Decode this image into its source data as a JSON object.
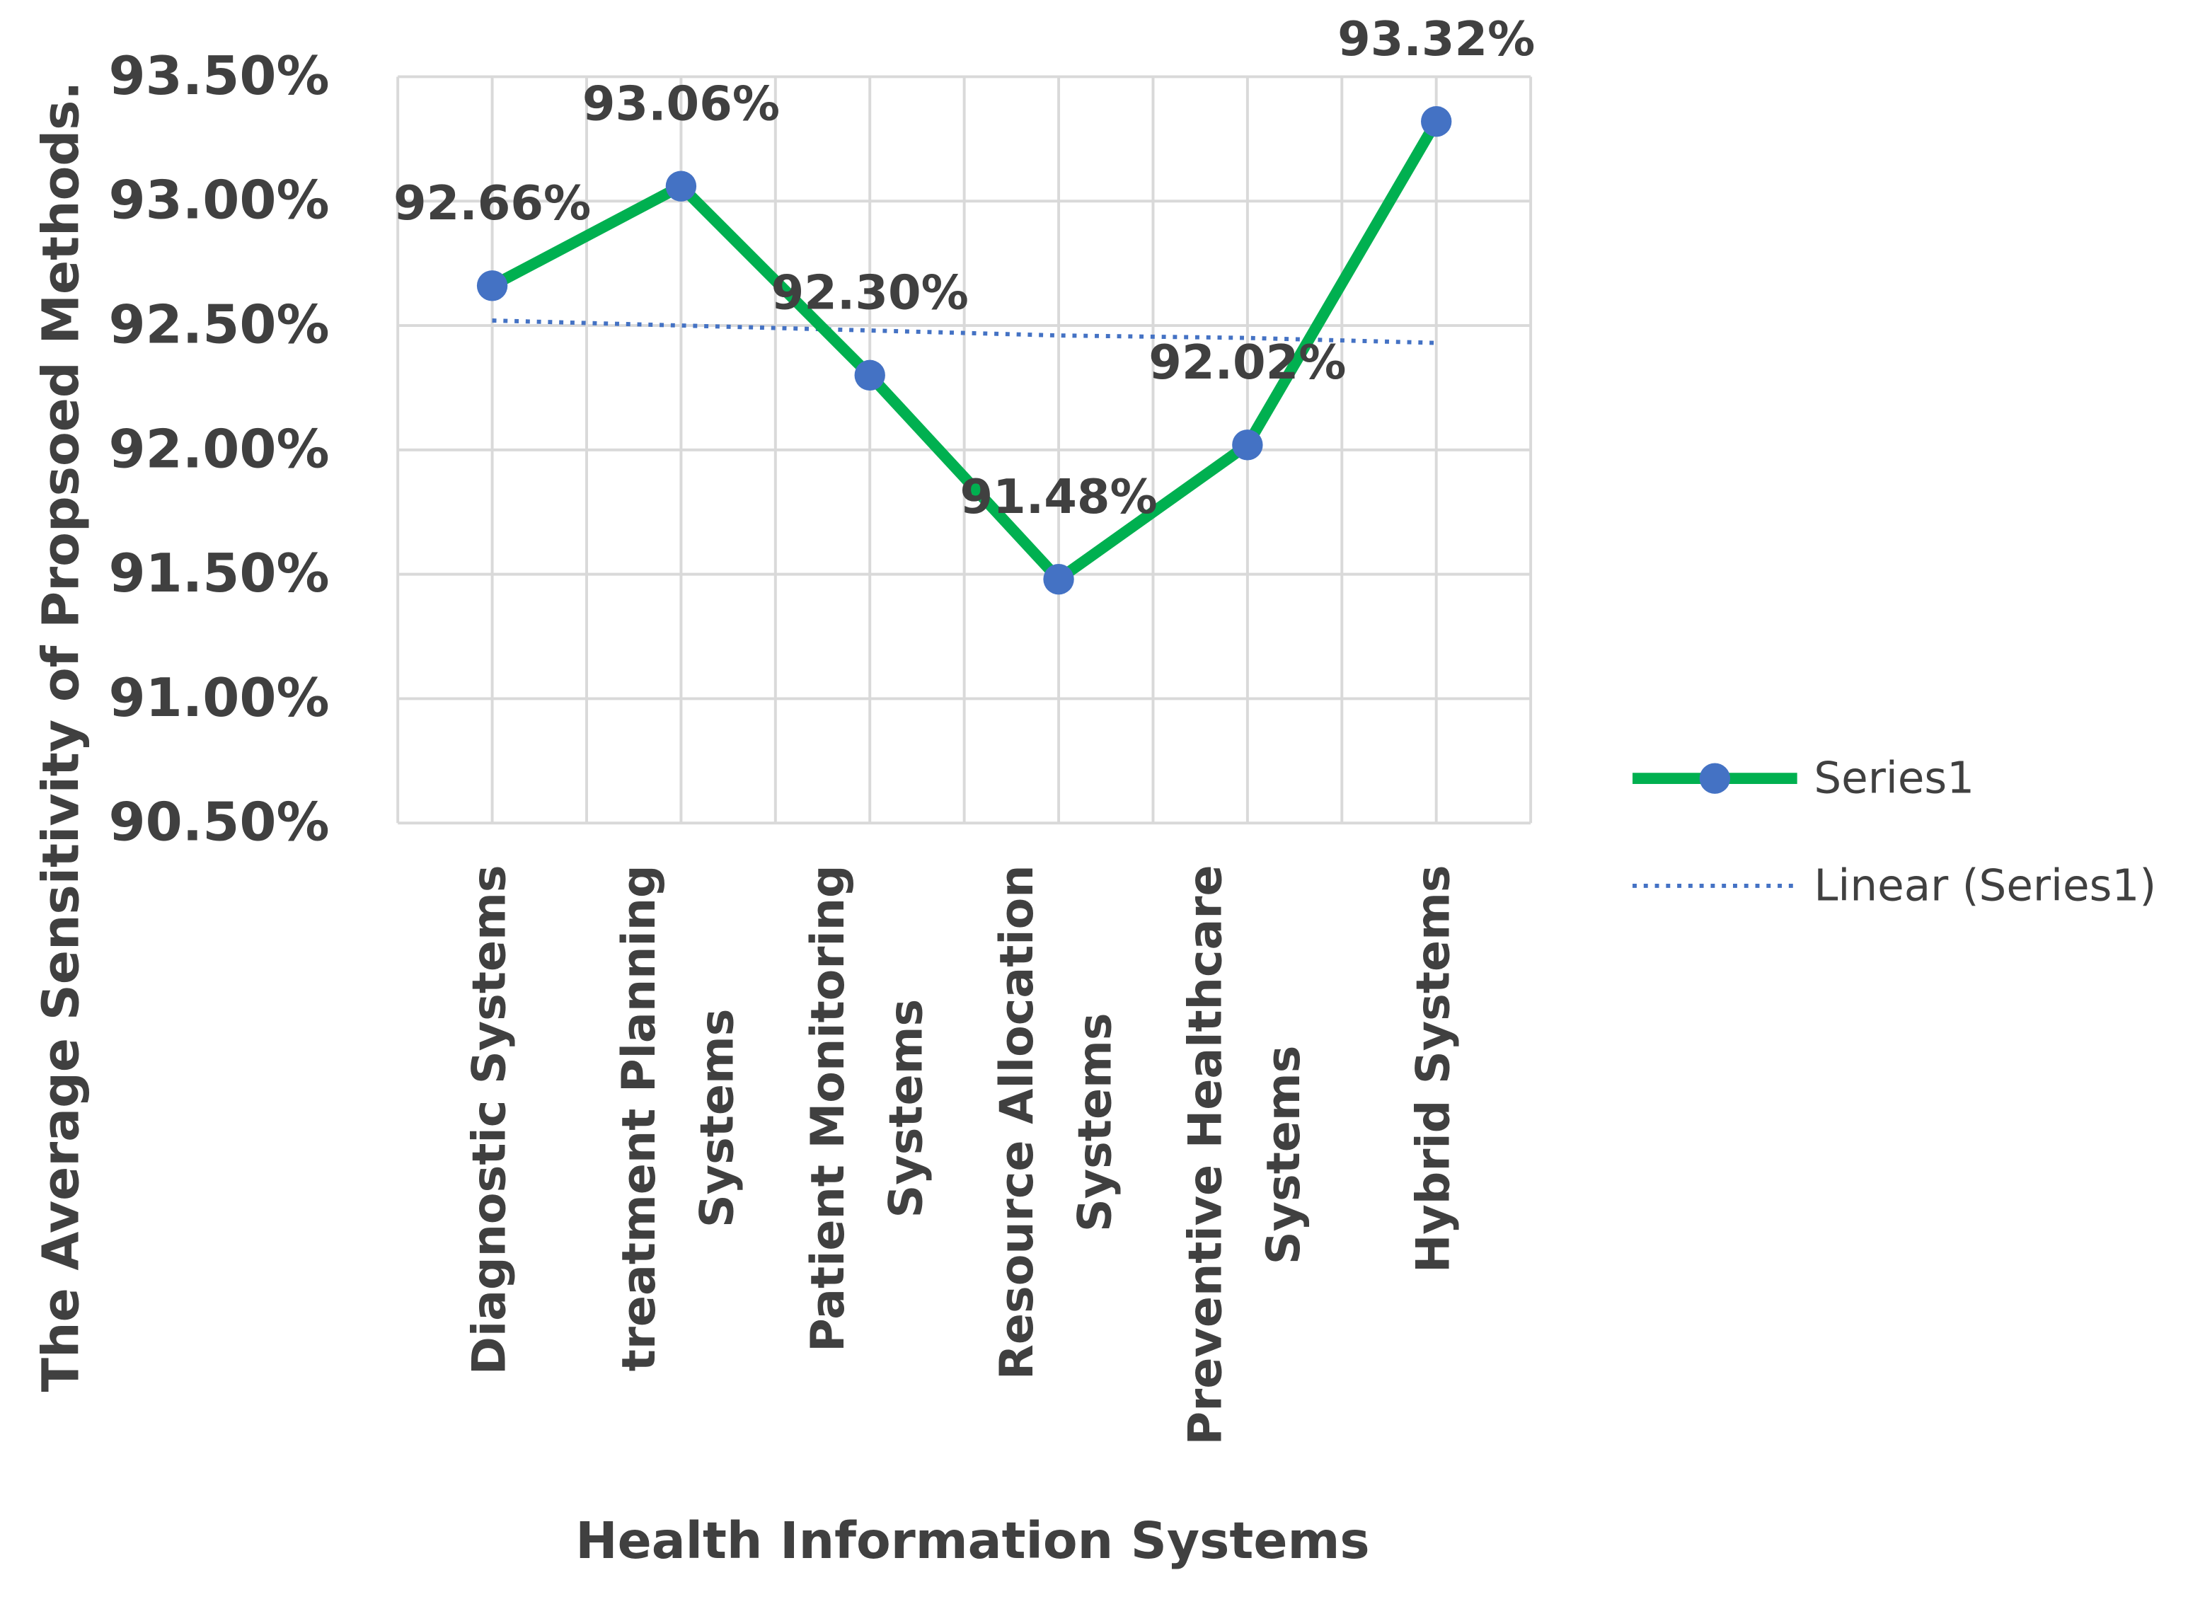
{
  "chart_data": {
    "type": "line",
    "xlabel": "Health Information Systems",
    "ylabel": "The Average Sensitivity of Propsoed Methods.",
    "categories": [
      "Diagnostic Systems",
      "treatment Planning Systems",
      "Patient Monitoring Systems",
      "Resource Allocation Systems",
      "Preventive Healthcare Systems",
      "Hybrid Systems"
    ],
    "series": [
      {
        "name": "Series1",
        "color": "#00b050",
        "marker_color": "#4472c4",
        "values": [
          92.66,
          93.06,
          92.3,
          91.48,
          92.02,
          93.32
        ],
        "value_labels": [
          "92.66%",
          "93.06%",
          "92.30%",
          "91.48%",
          "92.02%",
          "93.32%"
        ]
      },
      {
        "name": "Linear (Series1)",
        "color": "#4472c4",
        "dotted": true,
        "values": [
          92.52,
          92.5,
          92.48,
          92.46,
          92.45,
          92.43
        ]
      }
    ],
    "ylim": [
      90.5,
      93.5
    ],
    "yticks": [
      {
        "value": 90.5,
        "label": "90.50%"
      },
      {
        "value": 91.0,
        "label": "91.00%"
      },
      {
        "value": 91.5,
        "label": "91.50%"
      },
      {
        "value": 92.0,
        "label": "92.00%"
      },
      {
        "value": 92.5,
        "label": "92.50%"
      },
      {
        "value": 93.0,
        "label": "93.00%"
      },
      {
        "value": 93.5,
        "label": "93.50%"
      }
    ],
    "grid": true,
    "legend": "right"
  }
}
